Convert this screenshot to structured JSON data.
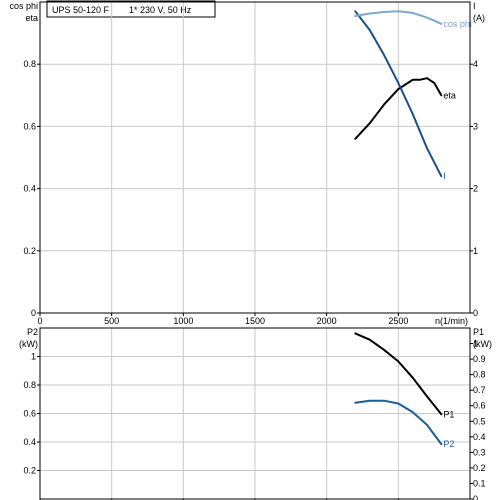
{
  "header": {
    "model": "UPS 50-120 F",
    "supply": "1* 230 V, 50 Hz"
  },
  "colors": {
    "grid": "#c9c9c9",
    "axis": "#000000",
    "eta": "#000000",
    "current": "#1b4f86",
    "cosphi": "#7ea7cc",
    "p1": "#000000",
    "p2": "#1b5f94"
  },
  "chart_data": [
    {
      "type": "line",
      "x": {
        "label": "n(1/min)",
        "lim": [
          0,
          3000
        ],
        "ticks": [
          0,
          500,
          1000,
          1500,
          2000,
          2500
        ],
        "tick_labels": [
          "0",
          "500",
          "1000",
          "1500",
          "2000",
          "2500"
        ]
      },
      "y_left": {
        "label_lines": [
          "cos phi",
          "eta"
        ],
        "lim": [
          0,
          1.0
        ],
        "ticks": [
          0,
          0.2,
          0.4,
          0.6,
          0.8
        ],
        "tick_labels": [
          "0",
          "0.2",
          "0.4",
          "0.6",
          "0.8"
        ]
      },
      "y_right": {
        "label_lines": [
          "I",
          "(A)"
        ],
        "lim": [
          0,
          5.0
        ],
        "ticks": [
          0,
          1,
          2,
          3,
          4
        ],
        "tick_labels": [
          "0",
          "1",
          "2",
          "3",
          "4"
        ]
      },
      "grid": true,
      "series": [
        {
          "name": "eta",
          "axis": "left",
          "color_key": "eta",
          "x": [
            2200,
            2300,
            2400,
            2500,
            2600,
            2650,
            2700,
            2750,
            2800
          ],
          "y": [
            0.56,
            0.61,
            0.67,
            0.72,
            0.75,
            0.75,
            0.755,
            0.74,
            0.7
          ]
        },
        {
          "name": "I",
          "axis": "right",
          "color_key": "current",
          "x": [
            2200,
            2300,
            2400,
            2500,
            2600,
            2700,
            2800
          ],
          "y": [
            4.85,
            4.55,
            4.15,
            3.7,
            3.2,
            2.65,
            2.2
          ]
        },
        {
          "name": "cos phi",
          "axis": "left",
          "color_key": "cosphi",
          "x": [
            2200,
            2300,
            2400,
            2500,
            2600,
            2700,
            2800
          ],
          "y": [
            0.955,
            0.963,
            0.968,
            0.97,
            0.965,
            0.95,
            0.93
          ]
        }
      ]
    },
    {
      "type": "line",
      "x": {
        "lim": [
          0,
          3000
        ],
        "ticks": [
          0,
          500,
          1000,
          1500,
          2000,
          2500
        ]
      },
      "y_left": {
        "label_lines": [
          "P2",
          "(kW)"
        ],
        "lim": [
          0,
          1.2
        ],
        "ticks": [
          0.2,
          0.4,
          0.6,
          0.8,
          1.0
        ],
        "tick_labels": [
          "0.2",
          "0.4",
          "0.6",
          "0.8",
          "1"
        ]
      },
      "y_right": {
        "label_lines": [
          "P1",
          "(kW)"
        ],
        "lim": [
          0,
          1.1
        ],
        "ticks": [
          0,
          0.1,
          0.2,
          0.3,
          0.4,
          0.5,
          0.6,
          0.7,
          0.8,
          0.9,
          1.0
        ],
        "tick_labels": [
          "0",
          "0.1",
          "0.2",
          "0.3",
          "0.4",
          "0.5",
          "0.6",
          "0.7",
          "0.8",
          "0.9",
          "1"
        ]
      },
      "grid": true,
      "series": [
        {
          "name": "P1",
          "axis": "right",
          "color_key": "p1",
          "x": [
            2200,
            2300,
            2400,
            2500,
            2600,
            2700,
            2800
          ],
          "y": [
            1.065,
            1.025,
            0.96,
            0.885,
            0.78,
            0.66,
            0.545
          ]
        },
        {
          "name": "P2",
          "axis": "left",
          "color_key": "p2",
          "x": [
            2200,
            2300,
            2400,
            2500,
            2600,
            2700,
            2800
          ],
          "y": [
            0.675,
            0.69,
            0.69,
            0.67,
            0.61,
            0.52,
            0.385
          ]
        }
      ]
    }
  ]
}
